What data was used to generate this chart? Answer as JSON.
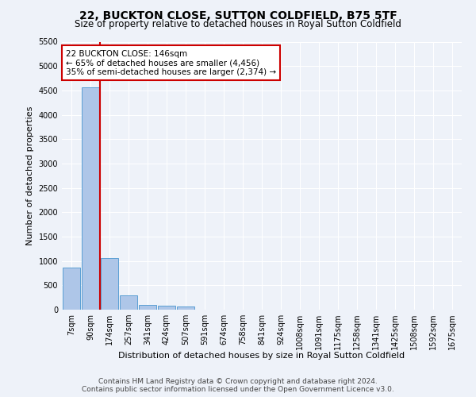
{
  "title": "22, BUCKTON CLOSE, SUTTON COLDFIELD, B75 5TF",
  "subtitle": "Size of property relative to detached houses in Royal Sutton Coldfield",
  "xlabel": "Distribution of detached houses by size in Royal Sutton Coldfield",
  "ylabel": "Number of detached properties",
  "footer_line1": "Contains HM Land Registry data © Crown copyright and database right 2024.",
  "footer_line2": "Contains public sector information licensed under the Open Government Licence v3.0.",
  "annotation_line1": "22 BUCKTON CLOSE: 146sqm",
  "annotation_line2": "← 65% of detached houses are smaller (4,456)",
  "annotation_line3": "35% of semi-detached houses are larger (2,374) →",
  "bar_color": "#aec6e8",
  "bar_edge_color": "#5a9fd4",
  "vline_color": "#cc0000",
  "annotation_box_edge_color": "#cc0000",
  "background_color": "#eef2f9",
  "grid_color": "#ffffff",
  "categories": [
    "7sqm",
    "90sqm",
    "174sqm",
    "257sqm",
    "341sqm",
    "424sqm",
    "507sqm",
    "591sqm",
    "674sqm",
    "758sqm",
    "841sqm",
    "924sqm",
    "1008sqm",
    "1091sqm",
    "1175sqm",
    "1258sqm",
    "1341sqm",
    "1425sqm",
    "1508sqm",
    "1592sqm",
    "1675sqm"
  ],
  "values": [
    870,
    4560,
    1060,
    290,
    90,
    80,
    60,
    0,
    0,
    0,
    0,
    0,
    0,
    0,
    0,
    0,
    0,
    0,
    0,
    0,
    0
  ],
  "ylim": [
    0,
    5500
  ],
  "yticks": [
    0,
    500,
    1000,
    1500,
    2000,
    2500,
    3000,
    3500,
    4000,
    4500,
    5000,
    5500
  ],
  "vline_x_index": 1.5,
  "title_fontsize": 10,
  "subtitle_fontsize": 8.5,
  "ylabel_fontsize": 8,
  "xlabel_fontsize": 8,
  "tick_fontsize": 7,
  "footer_fontsize": 6.5,
  "annotation_fontsize": 7.5
}
